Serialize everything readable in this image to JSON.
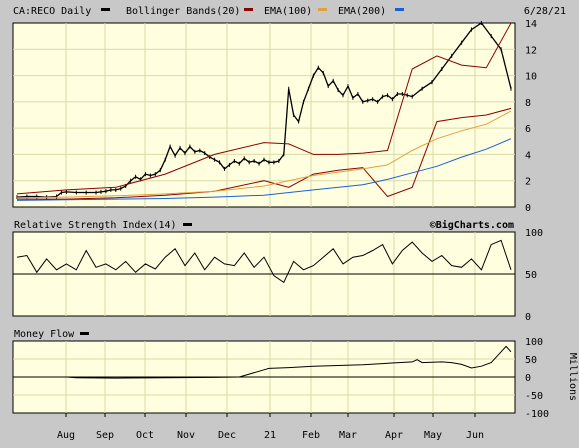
{
  "header": {
    "symbol_label": "CA:RECO Daily",
    "date_label": "6/28/21",
    "watermark": "©BigCharts.com"
  },
  "legend": [
    {
      "label": "Bollinger Bands(20)",
      "color": "#000000"
    },
    {
      "label": "EMA(100)",
      "color": "#8b0000"
    },
    {
      "label": "EMA(200)",
      "color": "#e0a040"
    },
    {
      "label": "",
      "color": "#1a5fd8"
    }
  ],
  "colors": {
    "panel_bg": "#ffffe0",
    "frame_bg": "#c8c8c8",
    "grid": "#d9d9a8",
    "price": "#000000",
    "boll": "#8b0000",
    "ema100": "#e0a040",
    "ema200": "#1a5fd8"
  },
  "x_axis": {
    "ticks": [
      "Aug",
      "Sep",
      "Oct",
      "Nov",
      "Dec",
      "21",
      "Feb",
      "Mar",
      "Apr",
      "May",
      "Jun"
    ]
  },
  "chart_data": [
    {
      "type": "line",
      "title": "CA:RECO Daily",
      "ylim": [
        0,
        14
      ],
      "yticks": [
        0,
        2,
        4,
        6,
        8,
        10,
        12,
        14
      ],
      "grid": true,
      "legend_placement": "top-left",
      "series": [
        {
          "name": "CA:RECO Daily",
          "x": [
            0,
            2,
            4,
            6,
            8,
            9,
            10,
            12,
            14,
            16,
            17,
            18,
            19,
            20,
            21,
            22,
            23,
            24,
            25,
            26,
            27,
            28,
            29,
            30,
            31,
            32,
            33,
            34,
            35,
            36,
            37,
            38,
            39,
            40,
            41,
            42,
            43,
            44,
            45,
            46,
            47,
            48,
            49,
            50,
            51,
            52,
            53,
            54,
            55,
            56,
            57,
            58,
            59,
            60,
            61,
            62,
            63,
            64,
            65,
            66,
            67,
            68,
            69,
            70,
            71,
            72,
            73,
            74,
            75,
            76,
            77,
            78,
            79,
            80,
            82,
            84,
            86,
            88,
            90,
            92,
            94,
            96,
            98,
            100
          ],
          "values": [
            0.75,
            0.8,
            0.8,
            0.75,
            0.8,
            1.1,
            1.15,
            1.1,
            1.1,
            1.1,
            1.15,
            1.2,
            1.3,
            1.3,
            1.4,
            1.6,
            2.0,
            2.3,
            2.1,
            2.5,
            2.4,
            2.5,
            2.8,
            3.6,
            4.6,
            3.9,
            4.5,
            4.1,
            4.6,
            4.2,
            4.3,
            4.1,
            3.8,
            3.6,
            3.4,
            2.9,
            3.2,
            3.5,
            3.3,
            3.7,
            3.4,
            3.5,
            3.3,
            3.6,
            3.4,
            3.4,
            3.5,
            4.0,
            9.0,
            7.0,
            6.5,
            8.0,
            9.0,
            10.0,
            10.6,
            10.2,
            9.2,
            9.6,
            8.9,
            8.5,
            9.2,
            8.3,
            8.6,
            8.0,
            8.1,
            8.2,
            8.0,
            8.4,
            8.5,
            8.2,
            8.6,
            8.6,
            8.5,
            8.4,
            9.0,
            9.5,
            10.5,
            11.5,
            12.5,
            13.5,
            14.0,
            13.0,
            12.0,
            9.0
          ]
        },
        {
          "name": "Bollinger Bands(20) upper",
          "x": [
            0,
            10,
            20,
            30,
            40,
            50,
            55,
            60,
            65,
            70,
            75,
            80,
            85,
            90,
            95,
            100
          ],
          "values": [
            1.0,
            1.3,
            1.5,
            2.5,
            4.0,
            4.9,
            4.8,
            4.0,
            4.0,
            4.1,
            4.3,
            10.5,
            11.5,
            10.8,
            10.6,
            14.0
          ]
        },
        {
          "name": "Bollinger Bands(20) lower",
          "x": [
            0,
            10,
            20,
            30,
            40,
            50,
            55,
            60,
            65,
            70,
            75,
            80,
            85,
            90,
            95,
            100
          ],
          "values": [
            0.6,
            0.6,
            0.7,
            0.9,
            1.2,
            2.0,
            1.5,
            2.5,
            2.8,
            3.0,
            0.8,
            1.5,
            6.5,
            6.8,
            7.0,
            7.5
          ]
        },
        {
          "name": "EMA(100)",
          "x": [
            0,
            10,
            20,
            30,
            40,
            50,
            60,
            70,
            75,
            80,
            85,
            90,
            95,
            100
          ],
          "values": [
            0.7,
            0.75,
            0.85,
            1.0,
            1.2,
            1.6,
            2.4,
            2.9,
            3.2,
            4.3,
            5.2,
            5.8,
            6.3,
            7.3
          ]
        },
        {
          "name": "EMA(200)",
          "x": [
            0,
            10,
            20,
            30,
            40,
            50,
            60,
            70,
            75,
            80,
            85,
            90,
            95,
            100
          ],
          "values": [
            0.5,
            0.55,
            0.6,
            0.65,
            0.75,
            0.9,
            1.3,
            1.7,
            2.1,
            2.6,
            3.1,
            3.8,
            4.4,
            5.2
          ]
        }
      ]
    },
    {
      "type": "line",
      "title": "Relative Strength Index(14)",
      "ylim": [
        0,
        100
      ],
      "yticks": [
        0,
        50,
        100
      ],
      "reference_line": 50,
      "series": [
        {
          "name": "Relative Strength Index(14)",
          "x": [
            0,
            2,
            4,
            6,
            8,
            10,
            12,
            14,
            16,
            18,
            20,
            22,
            24,
            26,
            28,
            30,
            32,
            34,
            36,
            38,
            40,
            42,
            44,
            46,
            48,
            50,
            52,
            54,
            56,
            58,
            60,
            62,
            64,
            66,
            68,
            70,
            72,
            74,
            76,
            78,
            80,
            82,
            84,
            86,
            88,
            90,
            92,
            94,
            96,
            98,
            100
          ],
          "values": [
            70,
            72,
            52,
            68,
            55,
            62,
            55,
            78,
            58,
            62,
            55,
            65,
            52,
            62,
            56,
            70,
            80,
            60,
            75,
            55,
            70,
            62,
            60,
            75,
            58,
            70,
            48,
            40,
            65,
            55,
            60,
            70,
            80,
            62,
            70,
            72,
            78,
            85,
            62,
            78,
            88,
            75,
            65,
            72,
            60,
            58,
            68,
            55,
            85,
            90,
            55
          ]
        }
      ]
    },
    {
      "type": "line",
      "title": "Money Flow",
      "ylabel": "Millions",
      "ylim": [
        -100,
        100
      ],
      "yticks": [
        -100,
        -50,
        0,
        50,
        100
      ],
      "reference_line": 0,
      "series": [
        {
          "name": "Money Flow",
          "x": [
            0,
            10,
            12,
            20,
            30,
            40,
            45,
            50,
            51,
            55,
            60,
            65,
            70,
            75,
            80,
            81,
            82,
            86,
            88,
            90,
            92,
            94,
            96,
            98,
            99,
            100
          ],
          "values": [
            0,
            0,
            -2,
            -3,
            -2,
            -1,
            0,
            20,
            24,
            26,
            30,
            32,
            34,
            38,
            42,
            48,
            40,
            42,
            40,
            35,
            25,
            30,
            40,
            70,
            85,
            70
          ]
        }
      ]
    }
  ]
}
